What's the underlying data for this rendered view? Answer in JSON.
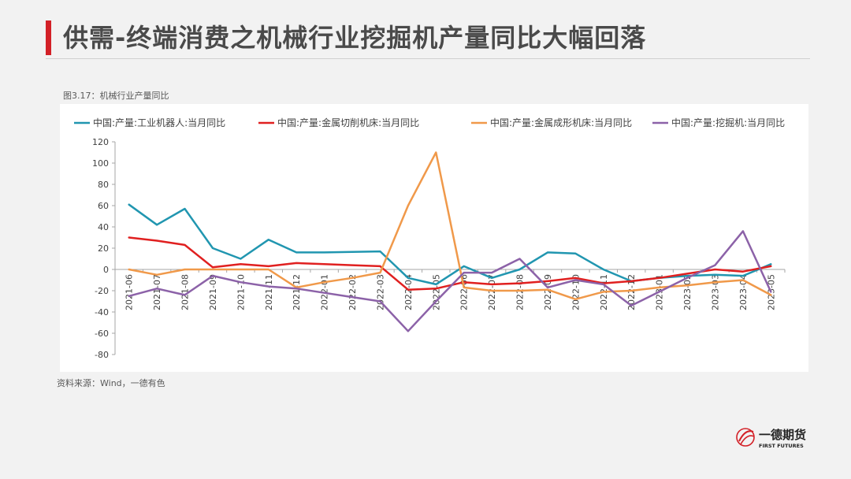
{
  "header": {
    "title": "供需-终端消费之机械行业挖掘机产量同比大幅回落"
  },
  "figure": {
    "caption": "图3.17：机械行业产量同比"
  },
  "footer": {
    "source": "资料来源：Wind，一德有色"
  },
  "logo": {
    "name_cn": "一德期货",
    "name_en": "FIRST FUTURES",
    "color": "#d32027"
  },
  "colors": {
    "accent": "#d32027",
    "background": "#f2f2f2",
    "panel": "#ffffff"
  },
  "chart_data": {
    "type": "line",
    "categories": [
      "2021-06",
      "2021-07",
      "2021-08",
      "2021-09",
      "2021-10",
      "2021-11",
      "2021-12",
      "2022-01",
      "2022-02",
      "2022-03",
      "2022-04",
      "2022-05",
      "2022-06",
      "2022-07",
      "2022-08",
      "2022-09",
      "2022-10",
      "2022-11",
      "2022-12",
      "2023-01",
      "2023-02",
      "2023-03",
      "2023-04",
      "2023-05"
    ],
    "ylim": [
      -80,
      120
    ],
    "yticks": [
      -80,
      -60,
      -40,
      -20,
      0,
      20,
      40,
      60,
      80,
      100,
      120
    ],
    "legend_position": "top",
    "grid": false,
    "series": [
      {
        "name": "中国:产量:工业机器人:当月同比",
        "color": "#2196b0",
        "values": [
          61,
          42,
          57,
          20,
          10,
          28,
          16,
          16,
          16.5,
          17,
          -8,
          -14,
          3,
          -8,
          0,
          16,
          15,
          0,
          -11,
          -8,
          -6,
          -5,
          -6,
          5
        ]
      },
      {
        "name": "中国:产量:金属切削机床:当月同比",
        "color": "#e02020",
        "values": [
          30,
          27,
          23,
          2,
          5,
          3,
          6,
          5,
          4,
          3,
          -19,
          -18,
          -12,
          -14,
          -13,
          -11,
          -8,
          -13,
          -11,
          -8,
          -4,
          0,
          -2,
          3
        ]
      },
      {
        "name": "中国:产量:金属成形机床:当月同比",
        "color": "#f0994a",
        "values": [
          0,
          -5,
          0,
          0,
          0,
          0,
          -17,
          -12,
          -8,
          -3,
          60,
          110,
          -17,
          -20,
          -20,
          -19,
          -28,
          -21,
          -20,
          -17,
          -15,
          -12,
          -10,
          -24
        ]
      },
      {
        "name": "中国:产量:挖掘机:当月同比",
        "color": "#8c62a8",
        "values": [
          -25,
          -18,
          -24,
          -6,
          -12,
          -16,
          -18,
          -22,
          -26,
          -30,
          -58,
          -30,
          -3,
          -3,
          10,
          -17,
          -10,
          -14,
          -34,
          -21,
          -8,
          4,
          36,
          -21
        ]
      }
    ]
  }
}
